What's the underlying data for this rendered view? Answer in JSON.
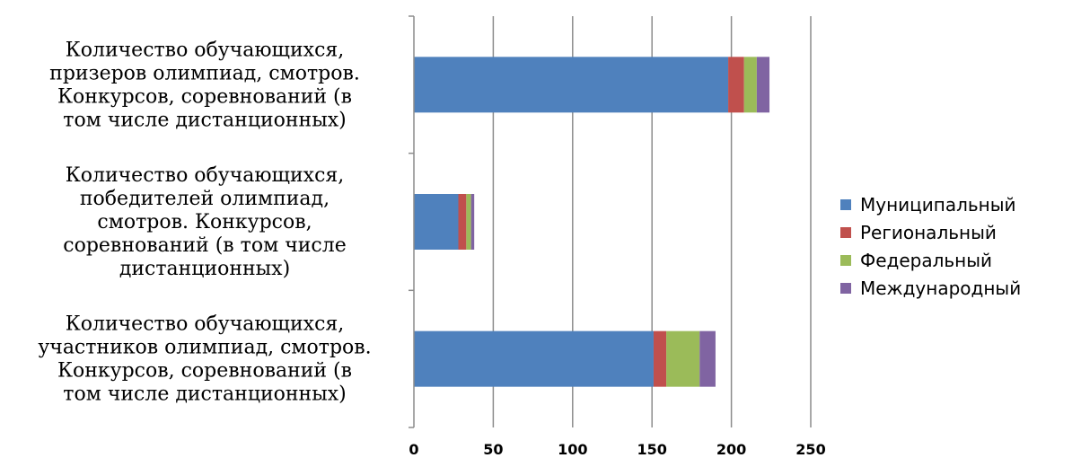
{
  "chart_data": {
    "type": "bar",
    "orientation": "horizontal",
    "stacked": true,
    "categories": [
      [
        "Количество обучающихся,",
        "участников олимпиад, смотров.",
        "Конкурсов, соревнований (в",
        "том числе дистанционных)"
      ],
      [
        "Количество обучающихся,",
        "победителей олимпиад,",
        "смотров. Конкурсов,",
        "соревнований (в том числе",
        "дистанционных)"
      ],
      [
        "Количество обучающихся,",
        "призеров олимпиад, смотров.",
        "Конкурсов, соревнований (в",
        "том числе дистанционных)"
      ]
    ],
    "series": [
      {
        "name": "Муниципальный",
        "color": "#4F81BD",
        "values": [
          151,
          28,
          198
        ]
      },
      {
        "name": "Региональный",
        "color": "#C0504D",
        "values": [
          8,
          5,
          10
        ]
      },
      {
        "name": "Федеральный",
        "color": "#9BBB59",
        "values": [
          21,
          3,
          8
        ]
      },
      {
        "name": "Международный",
        "color": "#8064A2",
        "values": [
          10,
          2,
          8
        ]
      }
    ],
    "xticks": [
      "0",
      "50",
      "100",
      "150",
      "200",
      "250"
    ],
    "xlim": [
      0,
      250
    ],
    "grid": true,
    "legend_position": "right"
  }
}
